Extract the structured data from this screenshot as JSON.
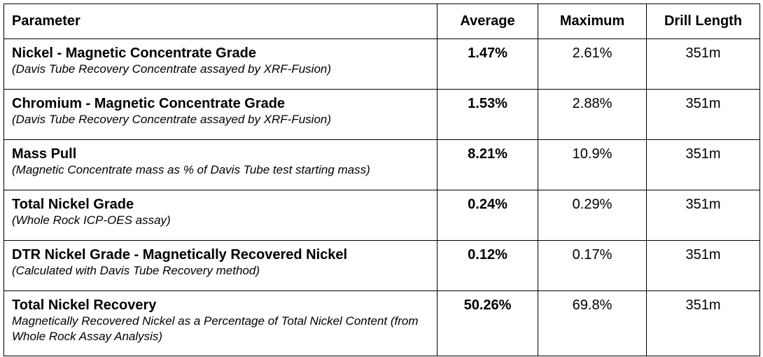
{
  "headers": {
    "parameter": "Parameter",
    "average": "Average",
    "maximum": "Maximum",
    "drill_length": "Drill Length"
  },
  "rows": [
    {
      "name": "Nickel - Magnetic Concentrate Grade",
      "note": "(Davis Tube Recovery Concentrate assayed by XRF-Fusion)",
      "average": "1.47%",
      "maximum": "2.61%",
      "drill_length": "351m"
    },
    {
      "name": "Chromium - Magnetic Concentrate Grade",
      "note": "(Davis Tube Recovery Concentrate assayed by XRF-Fusion)",
      "average": "1.53%",
      "maximum": "2.88%",
      "drill_length": "351m"
    },
    {
      "name": "Mass Pull",
      "note": "(Magnetic Concentrate mass as % of Davis Tube test starting mass)",
      "average": "8.21%",
      "maximum": "10.9%",
      "drill_length": "351m"
    },
    {
      "name": "Total Nickel Grade",
      "note": "(Whole Rock ICP-OES assay)",
      "average": "0.24%",
      "maximum": "0.29%",
      "drill_length": "351m"
    },
    {
      "name": "DTR Nickel Grade - Magnetically Recovered Nickel",
      "note": "(Calculated with Davis Tube Recovery method)",
      "average": "0.12%",
      "maximum": "0.17%",
      "drill_length": "351m"
    },
    {
      "name": "Total Nickel Recovery",
      "note": "Magnetically Recovered Nickel as a Percentage of Total Nickel Content (from Whole Rock Assay Analysis)",
      "average": "50.26%",
      "maximum": "69.8%",
      "drill_length": "351m"
    }
  ]
}
